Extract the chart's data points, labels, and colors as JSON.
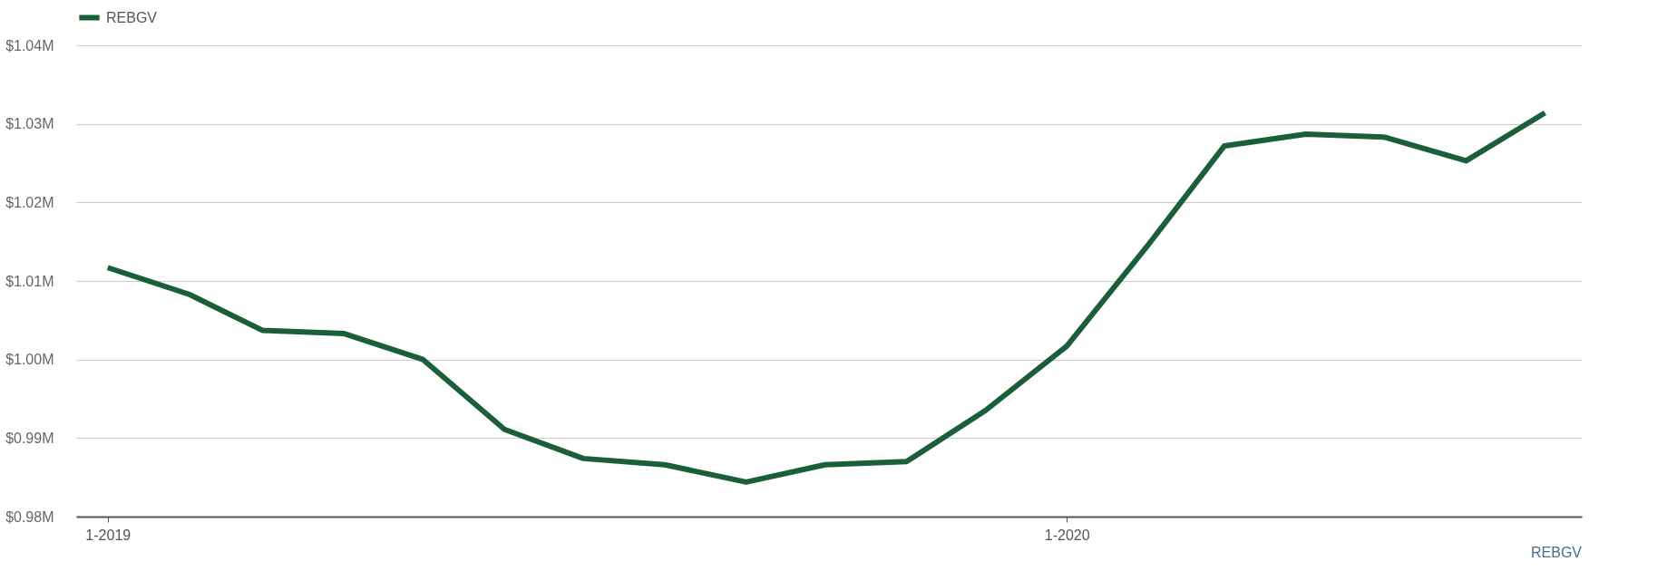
{
  "chart_data": {
    "type": "line",
    "x": [
      "2019-01",
      "2019-02",
      "2019-03",
      "2019-04",
      "2019-05",
      "2019-06",
      "2019-07",
      "2019-08",
      "2019-09",
      "2019-10",
      "2019-11",
      "2019-12",
      "2020-01",
      "2020-02",
      "2020-03",
      "2020-04",
      "2020-05",
      "2020-06",
      "2020-07"
    ],
    "series": [
      {
        "name": "REBGV",
        "color": "#1b5e3a",
        "values": [
          1.0117,
          1.0083,
          1.0037,
          1.0033,
          1.0,
          0.9911,
          0.9874,
          0.9866,
          0.9844,
          0.9866,
          0.987,
          0.9935,
          1.0017,
          1.0146,
          1.0272,
          1.0287,
          1.0283,
          1.0253,
          1.0314
        ]
      }
    ],
    "xlim": [
      "2018-12-20",
      "2020-07-15"
    ],
    "xticks": [
      {
        "value": "2019-01",
        "label": "1-2019"
      },
      {
        "value": "2020-01",
        "label": "1-2020"
      }
    ],
    "ylim": [
      0.98,
      1.04
    ],
    "yticks": [
      {
        "value": 0.98,
        "label": "$0.98M"
      },
      {
        "value": 0.99,
        "label": "$0.99M"
      },
      {
        "value": 1.0,
        "label": "$1.00M"
      },
      {
        "value": 1.01,
        "label": "$1.01M"
      },
      {
        "value": 1.02,
        "label": "$1.02M"
      },
      {
        "value": 1.03,
        "label": "$1.03M"
      },
      {
        "value": 1.04,
        "label": "$1.04M"
      }
    ],
    "grid": "y",
    "legend": "top",
    "marker": "none",
    "line_style": "solid",
    "annotations": [
      "REBGV"
    ]
  }
}
